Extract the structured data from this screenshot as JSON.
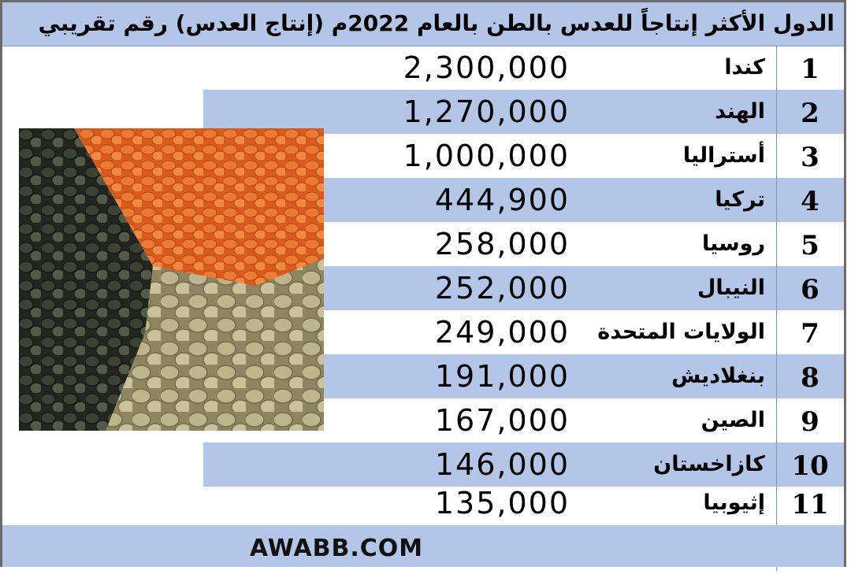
{
  "title": "الدول الأكثر إنتاجاً للعدس بالطن بالعام 2022م (إنتاج العدس) رقم تقريبي",
  "rows": [
    {
      "rank": "1",
      "country": "كندا",
      "value": "2,300,000"
    },
    {
      "rank": "2",
      "country": "الهند",
      "value": "1,270,000"
    },
    {
      "rank": "3",
      "country": "أستراليا",
      "value": "1,000,000"
    },
    {
      "rank": "4",
      "country": "تركيا",
      "value": "444,900"
    },
    {
      "rank": "5",
      "country": "روسيا",
      "value": "258,000"
    },
    {
      "rank": "6",
      "country": "النيبال",
      "value": "252,000"
    },
    {
      "rank": "7",
      "country": "الولايات المتحدة",
      "value": "249,000"
    },
    {
      "rank": "8",
      "country": "بنغلاديش",
      "value": "191,000"
    },
    {
      "rank": "9",
      "country": "الصين",
      "value": "167,000"
    },
    {
      "rank": "10",
      "country": "كازاخستان",
      "value": "146,000"
    },
    {
      "rank": "11",
      "country": "إثيوبيا",
      "value": "135,000"
    }
  ],
  "footer": "AWABB.COM",
  "colors": {
    "band": "#b4c6e7",
    "white": "#ffffff",
    "border": "#6b6b6b"
  }
}
